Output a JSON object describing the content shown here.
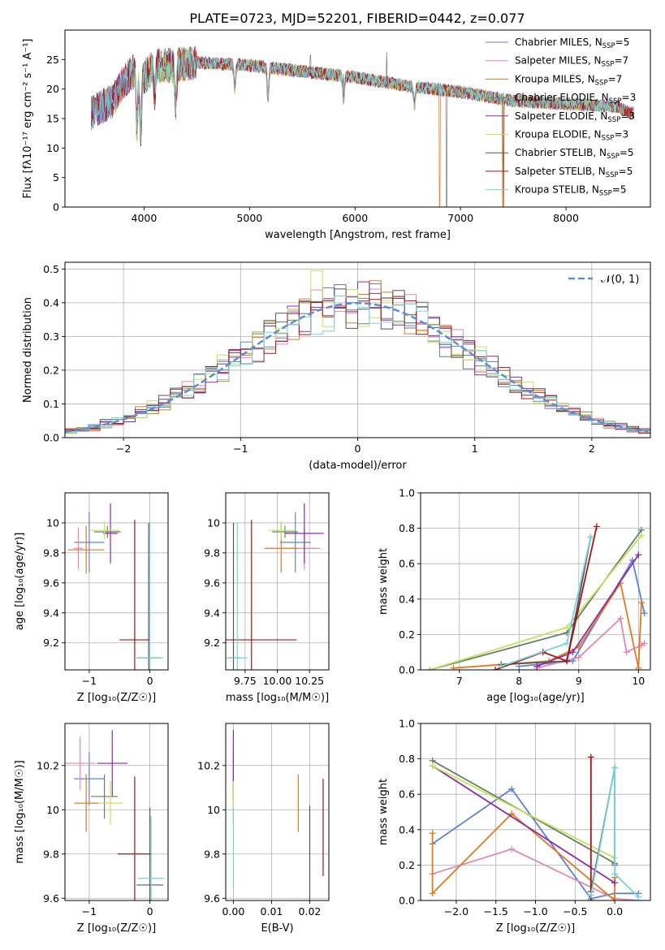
{
  "figure": {
    "title": "PLATE=0723, MJD=52201, FIBERID=0442, z=0.077"
  },
  "models": [
    {
      "label": "Chabrier MILES, N_SSP=5",
      "imf": "Chabrier",
      "lib": "MILES",
      "nssp": "5",
      "color": "#5b82d6"
    },
    {
      "label": "Salpeter MILES, N_SSP=7",
      "imf": "Salpeter",
      "lib": "MILES",
      "nssp": "7",
      "color": "#e386b8"
    },
    {
      "label": "Kroupa MILES, N_SSP=7",
      "imf": "Kroupa",
      "lib": "MILES",
      "nssp": "7",
      "color": "#e07a22"
    },
    {
      "label": "Chabrier ELODIE, N_SSP=3",
      "imf": "Chabrier",
      "lib": "ELODIE",
      "nssp": "3",
      "color": "#62826a"
    },
    {
      "label": "Salpeter ELODIE, N_SSP=3",
      "imf": "Salpeter",
      "lib": "ELODIE",
      "nssp": "3",
      "color": "#8e2aa8"
    },
    {
      "label": "Kroupa ELODIE, N_SSP=3",
      "imf": "Kroupa",
      "lib": "ELODIE",
      "nssp": "3",
      "color": "#c9e05a"
    },
    {
      "label": "Chabrier STELIB, N_SSP=5",
      "imf": "Chabrier",
      "lib": "STELIB",
      "nssp": "5",
      "color": "#555555"
    },
    {
      "label": "Salpeter STELIB, N_SSP=5",
      "imf": "Salpeter",
      "lib": "STELIB",
      "nssp": "5",
      "color": "#a81414"
    },
    {
      "label": "Kroupa STELIB, N_SSP=5",
      "imf": "Kroupa",
      "lib": "STELIB",
      "nssp": "5",
      "color": "#78d2dc"
    }
  ],
  "chart_data": [
    {
      "id": "spectrum",
      "type": "line",
      "xlabel": "wavelength [Angstrom, rest frame]",
      "ylabel": "Flux [fλ10⁻¹⁷ erg cm⁻² s⁻¹ A⁻¹]",
      "xlim": [
        3250,
        8800
      ],
      "ylim": [
        0,
        30
      ],
      "xticks": [
        4000,
        5000,
        6000,
        7000,
        8000
      ],
      "yticks": [
        0,
        5,
        10,
        15,
        20,
        25
      ],
      "legend": "top-right",
      "grid": false,
      "continuum": [
        [
          3500,
          16
        ],
        [
          3700,
          18
        ],
        [
          3800,
          21
        ],
        [
          3900,
          23
        ],
        [
          4000,
          22
        ],
        [
          4100,
          24
        ],
        [
          4300,
          24
        ],
        [
          4500,
          24.5
        ],
        [
          5000,
          24
        ],
        [
          5500,
          23
        ],
        [
          6000,
          22
        ],
        [
          6500,
          20.5
        ],
        [
          7000,
          19.5
        ],
        [
          7500,
          18
        ],
        [
          8000,
          17.5
        ],
        [
          8500,
          17
        ],
        [
          8600,
          16
        ]
      ],
      "absorption_dips": [
        [
          3933,
          -9
        ],
        [
          3968,
          -10
        ],
        [
          4101,
          -5
        ],
        [
          4300,
          -7
        ],
        [
          4861,
          -4
        ],
        [
          5175,
          -5
        ],
        [
          5892,
          -4
        ],
        [
          6563,
          -3
        ]
      ],
      "spikes": [
        [
          5577,
          3
        ],
        [
          5890,
          4
        ],
        [
          6300,
          5
        ],
        [
          6865,
          -23
        ],
        [
          6870,
          -23
        ],
        [
          7400,
          -23
        ],
        [
          7410,
          -23
        ]
      ]
    },
    {
      "id": "residuals",
      "type": "line",
      "xlabel": "(data-model)/error",
      "ylabel": "Normed distribution",
      "xlim": [
        -2.5,
        2.5
      ],
      "ylim": [
        0,
        0.52
      ],
      "xticks": [
        -2,
        -1,
        0,
        1,
        2
      ],
      "yticks": [
        0.0,
        0.1,
        0.2,
        0.3,
        0.4,
        0.5
      ],
      "legend": "top-right",
      "legend_label": "𝒩(0, 1)",
      "grid": true,
      "gaussian": {
        "mean": 0,
        "sigma": 1,
        "color": "#5b8fd0"
      },
      "bin_width": 0.1
    },
    {
      "id": "age_vs_Z",
      "type": "scatter",
      "xlabel": "Z [log₁₀(Z/Z☉)]",
      "ylabel": "age  [log₁₀(age/yr)]",
      "xlim": [
        -1.4,
        0.3
      ],
      "ylim": [
        9.02,
        10.2
      ],
      "xticks": [
        -1,
        0
      ],
      "yticks": [
        9.2,
        9.4,
        9.6,
        9.8,
        10.0
      ],
      "grid": true,
      "points": [
        {
          "x": -1.0,
          "xerr": 0.25,
          "y": 9.87,
          "yerr": 0.2
        },
        {
          "x": -1.18,
          "xerr": 0.08,
          "y": 9.83,
          "yerr": 0.14
        },
        {
          "x": -1.05,
          "xerr": 0.3,
          "y": 9.82,
          "yerr": 0.16
        },
        {
          "x": -0.7,
          "xerr": 0.22,
          "y": 9.94,
          "yerr": 0.04
        },
        {
          "x": -0.65,
          "xerr": 0.12,
          "y": 9.93,
          "yerr": 0.2
        },
        {
          "x": -0.75,
          "xerr": 0.25,
          "y": 9.95,
          "yerr": 0.06
        },
        {
          "x": -0.02,
          "xerr": 0.2,
          "y": 9.1,
          "yerr": 0.9
        },
        {
          "x": -0.25,
          "xerr": 0.25,
          "y": 9.22,
          "yerr": 0.8
        },
        {
          "x": 0.0,
          "xerr": 0.22,
          "y": 9.1,
          "yerr": 0.9
        }
      ]
    },
    {
      "id": "age_vs_mass",
      "type": "scatter",
      "xlabel": "mass [log₁₀(M/M☉)]",
      "ylabel": "",
      "xlim": [
        9.6,
        10.4
      ],
      "ylim": [
        9.02,
        10.2
      ],
      "xticks": [
        9.75,
        10.0,
        10.25
      ],
      "tick_labels": [
        "9.75",
        "10.00",
        "10.25"
      ],
      "yticks": [
        9.2,
        9.4,
        9.6,
        9.8,
        10.0
      ],
      "grid": true,
      "points": [
        {
          "x": 10.14,
          "xerr": 0.12,
          "y": 9.87,
          "yerr": 0.2
        },
        {
          "x": 10.21,
          "xerr": 0.12,
          "y": 9.83,
          "yerr": 0.14
        },
        {
          "x": 10.03,
          "xerr": 0.13,
          "y": 9.83,
          "yerr": 0.16
        },
        {
          "x": 10.06,
          "xerr": 0.1,
          "y": 9.94,
          "yerr": 0.04
        },
        {
          "x": 10.21,
          "xerr": 0.15,
          "y": 9.93,
          "yerr": 0.2
        },
        {
          "x": 10.03,
          "xerr": 0.1,
          "y": 9.95,
          "yerr": 0.06
        },
        {
          "x": 9.66,
          "xerr": 0.05,
          "y": 9.1,
          "yerr": 0.9
        },
        {
          "x": 9.8,
          "xerr": 0.35,
          "y": 9.22,
          "yerr": 0.8
        },
        {
          "x": 9.69,
          "xerr": 0.08,
          "y": 9.1,
          "yerr": 0.9
        }
      ]
    },
    {
      "id": "weight_vs_age",
      "type": "line",
      "xlabel": "age  [log₁₀(age/yr)]",
      "ylabel": "mass weight",
      "xlim": [
        6.35,
        10.2
      ],
      "ylim": [
        0,
        1.0
      ],
      "xticks": [
        7,
        8,
        9,
        10
      ],
      "yticks": [
        0.0,
        0.2,
        0.4,
        0.6,
        0.8,
        1.0
      ],
      "grid": true,
      "series": [
        {
          "x": [
            8.0,
            8.9,
            9.9,
            10.1
          ],
          "y": [
            0.02,
            0.05,
            0.62,
            0.32
          ]
        },
        {
          "x": [
            8.3,
            9.0,
            9.7,
            9.8,
            10.05,
            10.1
          ],
          "y": [
            0.01,
            0.07,
            0.29,
            0.1,
            0.14,
            0.15
          ]
        },
        {
          "x": [
            6.9,
            8.5,
            9.0,
            9.7,
            10.0,
            10.05
          ],
          "y": [
            0.01,
            0.05,
            0.13,
            0.49,
            0.01,
            0.38
          ]
        },
        {
          "x": [
            6.5,
            8.8,
            10.05
          ],
          "y": [
            0.0,
            0.21,
            0.79
          ]
        },
        {
          "x": [
            8.3,
            8.9,
            10.0
          ],
          "y": [
            0.02,
            0.1,
            0.65
          ]
        },
        {
          "x": [
            6.5,
            8.8,
            10.05
          ],
          "y": [
            0.0,
            0.24,
            0.76
          ]
        },
        {
          "x": [
            7.7,
            8.8,
            9.2
          ],
          "y": [
            0.03,
            0.05,
            0.75
          ]
        },
        {
          "x": [
            7.6,
            8.4,
            8.8,
            9.3
          ],
          "y": [
            0.0,
            0.1,
            0.05,
            0.81
          ]
        },
        {
          "x": [
            7.7,
            8.8,
            9.2
          ],
          "y": [
            0.02,
            0.15,
            0.75
          ]
        }
      ]
    },
    {
      "id": "mass_vs_Z",
      "type": "scatter",
      "xlabel": "Z [log₁₀(Z/Z☉)]",
      "ylabel": "mass [log₁₀(M/M☉)]",
      "xlim": [
        -1.4,
        0.3
      ],
      "ylim": [
        9.59,
        10.39
      ],
      "xticks": [
        -1,
        0
      ],
      "yticks": [
        9.6,
        9.8,
        10.0,
        10.2
      ],
      "grid": true,
      "points": [
        {
          "x": -1.0,
          "xerr": 0.25,
          "y": 10.14,
          "yerr": 0.12
        },
        {
          "x": -1.15,
          "xerr": 0.25,
          "y": 10.21,
          "yerr": 0.12
        },
        {
          "x": -1.05,
          "xerr": 0.2,
          "y": 10.03,
          "yerr": 0.13
        },
        {
          "x": -0.75,
          "xerr": 0.22,
          "y": 10.06,
          "yerr": 0.1
        },
        {
          "x": -0.62,
          "xerr": 0.25,
          "y": 10.21,
          "yerr": 0.15
        },
        {
          "x": -0.65,
          "xerr": 0.2,
          "y": 10.03,
          "yerr": 0.1
        },
        {
          "x": 0.0,
          "xerr": 0.22,
          "y": 9.66,
          "yerr": 0.35
        },
        {
          "x": -0.25,
          "xerr": 0.28,
          "y": 9.8,
          "yerr": 0.35
        },
        {
          "x": 0.02,
          "xerr": 0.22,
          "y": 9.69,
          "yerr": 0.28
        }
      ]
    },
    {
      "id": "mass_vs_ebv",
      "type": "scatter",
      "xlabel": "E(B-V)",
      "ylabel": "",
      "xlim": [
        -0.002,
        0.025
      ],
      "ylim": [
        9.59,
        10.39
      ],
      "xticks": [
        0.0,
        0.01,
        0.02
      ],
      "tick_labels": [
        "0.00",
        "0.01",
        "0.02"
      ],
      "yticks": [
        9.6,
        9.8,
        10.0,
        10.2
      ],
      "grid": true,
      "points": [
        {
          "x": 0.0,
          "xerr": 0.0,
          "y": 10.14,
          "yerr": 0.12
        },
        {
          "x": 0.0,
          "xerr": 0.0,
          "y": 10.21,
          "yerr": 0.12
        },
        {
          "x": 0.017,
          "xerr": 0.0,
          "y": 10.03,
          "yerr": 0.13
        },
        {
          "x": 0.0,
          "xerr": 0.0,
          "y": 10.06,
          "yerr": 0.1
        },
        {
          "x": 0.0,
          "xerr": 0.0,
          "y": 10.21,
          "yerr": 0.15
        },
        {
          "x": 0.0,
          "xerr": 0.0,
          "y": 10.03,
          "yerr": 0.1
        },
        {
          "x": 0.02,
          "xerr": 0.0,
          "y": 9.8,
          "yerr": 0.22
        },
        {
          "x": 0.0235,
          "xerr": 0.0,
          "y": 9.92,
          "yerr": 0.22
        },
        {
          "x": 0.0,
          "xerr": 0.0,
          "y": 9.83,
          "yerr": 0.18
        }
      ]
    },
    {
      "id": "weight_vs_Z",
      "type": "line",
      "xlabel": "Z [log₁₀(Z/Z☉)]",
      "ylabel": "mass weight",
      "xlim": [
        -2.45,
        0.45
      ],
      "ylim": [
        0,
        1.0
      ],
      "xticks": [
        -2.0,
        -1.5,
        -1.0,
        -0.5,
        0.0
      ],
      "tick_labels": [
        "−2.0",
        "−1.5",
        "−1.0",
        "−0.5",
        "0.0"
      ],
      "yticks": [
        0.0,
        0.2,
        0.4,
        0.6,
        0.8,
        1.0
      ],
      "grid": true,
      "series": [
        {
          "x": [
            -2.3,
            -1.3,
            -0.3,
            0.0,
            0.3
          ],
          "y": [
            0.32,
            0.63,
            0.01,
            0.04,
            0.04
          ]
        },
        {
          "x": [
            -2.3,
            -1.3,
            0.0,
            0.3
          ],
          "y": [
            0.15,
            0.29,
            0.01,
            0.0
          ]
        },
        {
          "x": [
            -2.3,
            -2.3,
            -1.3,
            0.0,
            0.0
          ],
          "y": [
            0.38,
            0.04,
            0.49,
            0.0,
            0.13
          ]
        },
        {
          "x": [
            -2.3,
            0.0
          ],
          "y": [
            0.79,
            0.21
          ]
        },
        {
          "x": [
            -2.3,
            0.0
          ],
          "y": [
            0.76,
            0.1
          ]
        },
        {
          "x": [
            -2.3,
            0.0
          ],
          "y": [
            0.76,
            0.24
          ]
        },
        {
          "x": [
            -0.3,
            0.0,
            0.0
          ],
          "y": [
            0.05,
            0.75,
            0.2
          ]
        },
        {
          "x": [
            -0.3,
            -0.3
          ],
          "y": [
            0.81,
            0.0
          ]
        },
        {
          "x": [
            -0.3,
            0.0,
            0.0,
            0.3
          ],
          "y": [
            0.03,
            0.75,
            0.15,
            0.02
          ]
        }
      ]
    }
  ]
}
